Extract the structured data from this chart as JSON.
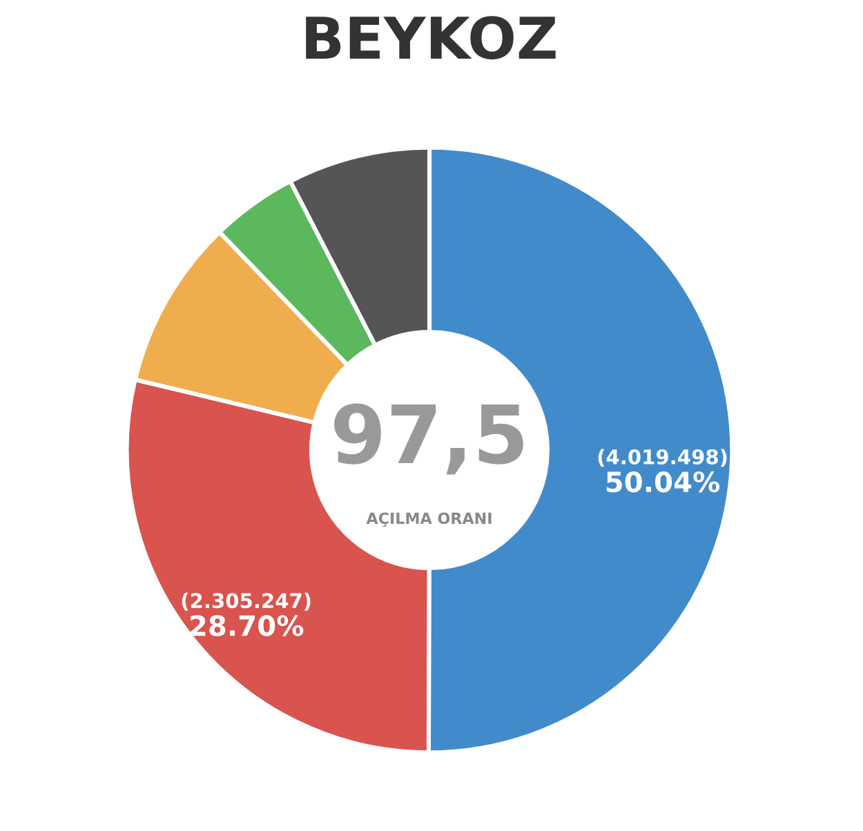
{
  "chart_data": {
    "type": "donut",
    "title": "BEYKOZ",
    "categories": [
      null,
      null,
      null,
      null,
      null
    ],
    "values": [
      50.04,
      28.7,
      9.06,
      4.6,
      7.6
    ],
    "colors": [
      "#428bca",
      "#d9534f",
      "#f0ad4e",
      "#5cb85c",
      "#555555"
    ],
    "value_labels": [
      "(4.019.498)\n50.04%",
      "(2.305.247)\n28.70%",
      null,
      null,
      null
    ],
    "annotations": [
      "97,5",
      "AÇILMA ORANI"
    ]
  }
}
